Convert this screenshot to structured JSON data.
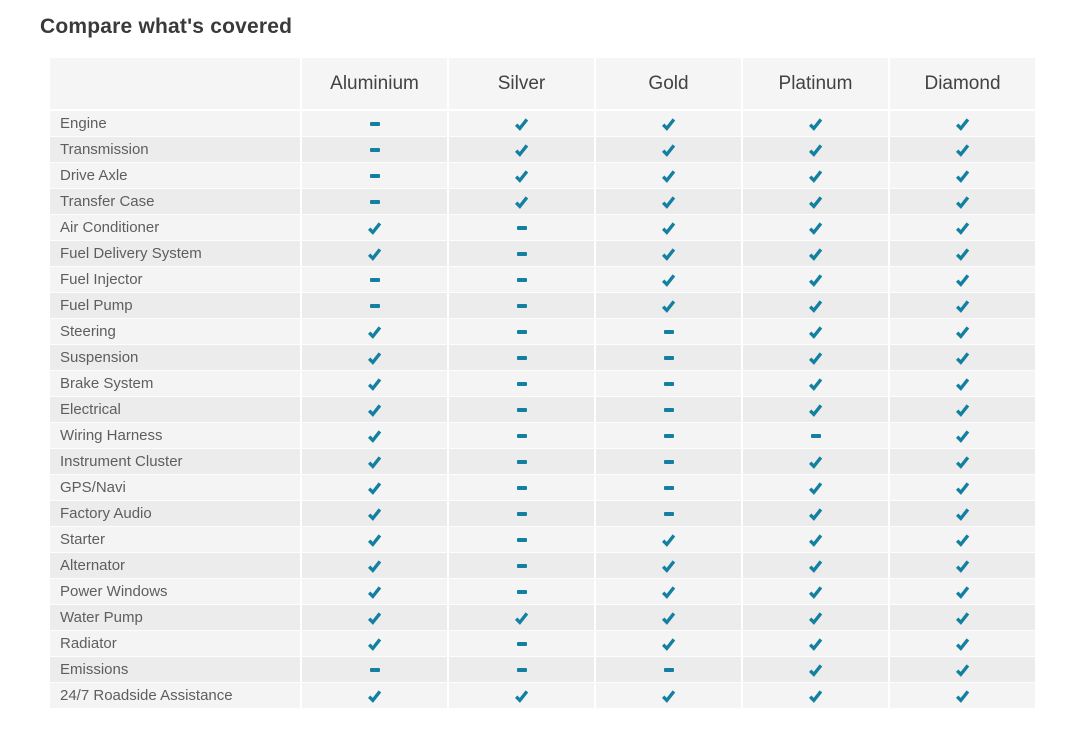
{
  "title": "Compare what's covered",
  "colors": {
    "accent_teal": "#1380A1",
    "row_light": "#f4f4f4",
    "row_dark": "#ececec",
    "header_bg": "#f5f5f5",
    "title_text": "#3a3a3a",
    "label_text": "#5e5e5e"
  },
  "icons": {
    "covered": "check-icon",
    "not_covered": "dash-icon"
  },
  "table": {
    "columns": [
      "Aluminium",
      "Silver",
      "Gold",
      "Platinum",
      "Diamond"
    ],
    "rows": [
      {
        "label": "Engine",
        "values": [
          "dash",
          "check",
          "check",
          "check",
          "check"
        ]
      },
      {
        "label": "Transmission",
        "values": [
          "dash",
          "check",
          "check",
          "check",
          "check"
        ]
      },
      {
        "label": "Drive Axle",
        "values": [
          "dash",
          "check",
          "check",
          "check",
          "check"
        ]
      },
      {
        "label": "Transfer Case",
        "values": [
          "dash",
          "check",
          "check",
          "check",
          "check"
        ]
      },
      {
        "label": "Air Conditioner",
        "values": [
          "check",
          "dash",
          "check",
          "check",
          "check"
        ]
      },
      {
        "label": "Fuel Delivery System",
        "values": [
          "check",
          "dash",
          "check",
          "check",
          "check"
        ]
      },
      {
        "label": "Fuel Injector",
        "values": [
          "dash",
          "dash",
          "check",
          "check",
          "check"
        ]
      },
      {
        "label": "Fuel Pump",
        "values": [
          "dash",
          "dash",
          "check",
          "check",
          "check"
        ]
      },
      {
        "label": "Steering",
        "values": [
          "check",
          "dash",
          "dash",
          "check",
          "check"
        ]
      },
      {
        "label": "Suspension",
        "values": [
          "check",
          "dash",
          "dash",
          "check",
          "check"
        ]
      },
      {
        "label": "Brake System",
        "values": [
          "check",
          "dash",
          "dash",
          "check",
          "check"
        ]
      },
      {
        "label": "Electrical",
        "values": [
          "check",
          "dash",
          "dash",
          "check",
          "check"
        ]
      },
      {
        "label": "Wiring Harness",
        "values": [
          "check",
          "dash",
          "dash",
          "dash",
          "check"
        ]
      },
      {
        "label": "Instrument Cluster",
        "values": [
          "check",
          "dash",
          "dash",
          "check",
          "check"
        ]
      },
      {
        "label": "GPS/Navi",
        "values": [
          "check",
          "dash",
          "dash",
          "check",
          "check"
        ]
      },
      {
        "label": "Factory Audio",
        "values": [
          "check",
          "dash",
          "dash",
          "check",
          "check"
        ]
      },
      {
        "label": "Starter",
        "values": [
          "check",
          "dash",
          "check",
          "check",
          "check"
        ]
      },
      {
        "label": "Alternator",
        "values": [
          "check",
          "dash",
          "check",
          "check",
          "check"
        ]
      },
      {
        "label": "Power Windows",
        "values": [
          "check",
          "dash",
          "check",
          "check",
          "check"
        ]
      },
      {
        "label": "Water Pump",
        "values": [
          "check",
          "check",
          "check",
          "check",
          "check"
        ]
      },
      {
        "label": "Radiator",
        "values": [
          "check",
          "dash",
          "check",
          "check",
          "check"
        ]
      },
      {
        "label": "Emissions",
        "values": [
          "dash",
          "dash",
          "dash",
          "check",
          "check"
        ]
      },
      {
        "label": "24/7 Roadside Assistance",
        "values": [
          "check",
          "check",
          "check",
          "check",
          "check"
        ]
      }
    ]
  }
}
